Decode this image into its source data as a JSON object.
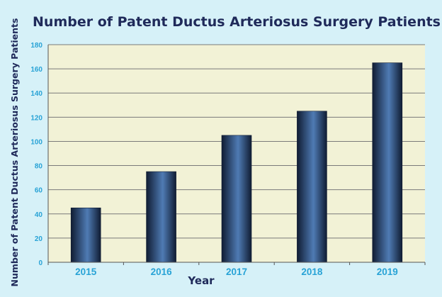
{
  "chart_data": {
    "type": "bar",
    "title": "Number of Patent Ductus Arteriosus Surgery Patients",
    "xlabel": "Year",
    "ylabel": "Number of Patent Ductus Arteriosus Surgery Patients",
    "categories": [
      "2015",
      "2016",
      "2017",
      "2018",
      "2019"
    ],
    "values": [
      45,
      75,
      105,
      125,
      165
    ],
    "ylim": [
      0,
      180
    ],
    "yticks": [
      0,
      20,
      40,
      60,
      80,
      100,
      120,
      140,
      160,
      180
    ],
    "grid": true,
    "legend": "none"
  },
  "colors": {
    "page_background": "#d6f1f8",
    "plot_background": "#f2f2d6",
    "title": "#1f2a5a",
    "axis_label": "#1f2a5a",
    "tick_label": "#29a3d6",
    "gridline": "#7a7a7a",
    "bar_dark": "#101c33",
    "bar_light": "#4f7bb4"
  }
}
